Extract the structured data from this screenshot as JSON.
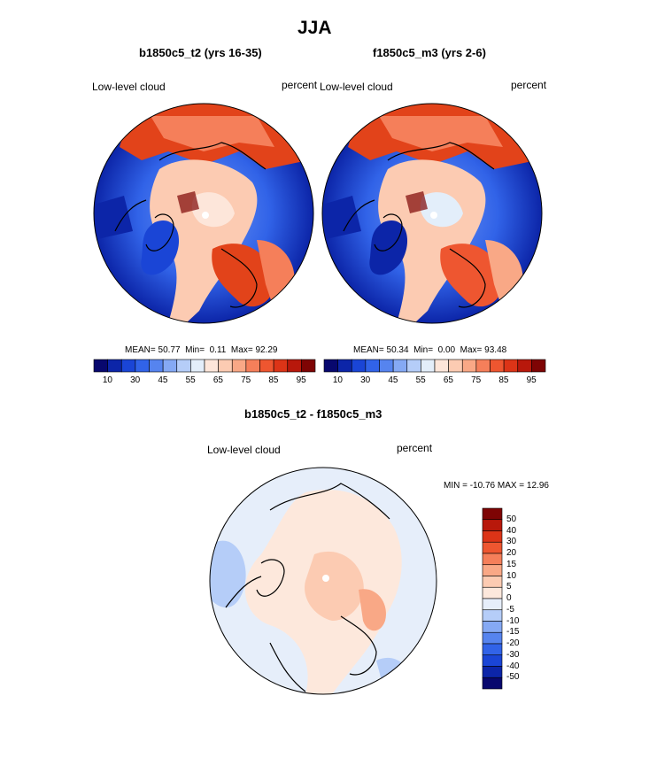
{
  "page": {
    "season_title": "JJA",
    "colors": {
      "ocean_blue": "#1f4fd6",
      "deep_blue": "#0a1f9e",
      "warm_red": "#e2431a",
      "land_pale": "#fbd3bd"
    }
  },
  "panels": [
    {
      "title": "b1850c5_t2 (yrs 16-35)",
      "variable": "Low-level cloud",
      "units": "percent",
      "stats": {
        "mean_label": "MEAN=",
        "mean": "50.77",
        "min_label": "Min=",
        "min": "0.11",
        "max_label": "Max=",
        "max": "92.29"
      }
    },
    {
      "title": "f1850c5_m3 (yrs 2-6)",
      "variable": "Low-level cloud",
      "units": "percent",
      "stats": {
        "mean_label": "MEAN=",
        "mean": "50.34",
        "min_label": "Min=",
        "min": "0.00",
        "max_label": "Max=",
        "max": "93.48"
      }
    }
  ],
  "colorbar_abs": {
    "colors": [
      "#08086e",
      "#0c25a8",
      "#1a45d6",
      "#3163e8",
      "#5684ef",
      "#85a9f4",
      "#b5cdf8",
      "#e3eefa",
      "#fde6da",
      "#fccbb2",
      "#f9a886",
      "#f57f5a",
      "#ee5630",
      "#dc3417",
      "#b8180b",
      "#7e0404"
    ],
    "ticks": [
      "10",
      "30",
      "45",
      "55",
      "65",
      "75",
      "85",
      "95"
    ]
  },
  "diff_panel": {
    "title": "b1850c5_t2 - f1850c5_m3",
    "variable": "Low-level cloud",
    "units": "percent",
    "minmax": "MIN = -10.76 MAX =  12.96"
  },
  "colorbar_diff": {
    "colors": [
      "#7e0404",
      "#b8180b",
      "#dc3417",
      "#ee5630",
      "#f57f5a",
      "#f9a886",
      "#fccbb2",
      "#fde8dc",
      "#e6eefa",
      "#b5cdf8",
      "#85a9f4",
      "#5684ef",
      "#3163e8",
      "#1a45d6",
      "#0c25a8",
      "#08086e"
    ],
    "labels": [
      "50",
      "40",
      "30",
      "20",
      "15",
      "10",
      "5",
      "0",
      "-5",
      "-10",
      "-15",
      "-20",
      "-30",
      "-40",
      "-50"
    ]
  }
}
